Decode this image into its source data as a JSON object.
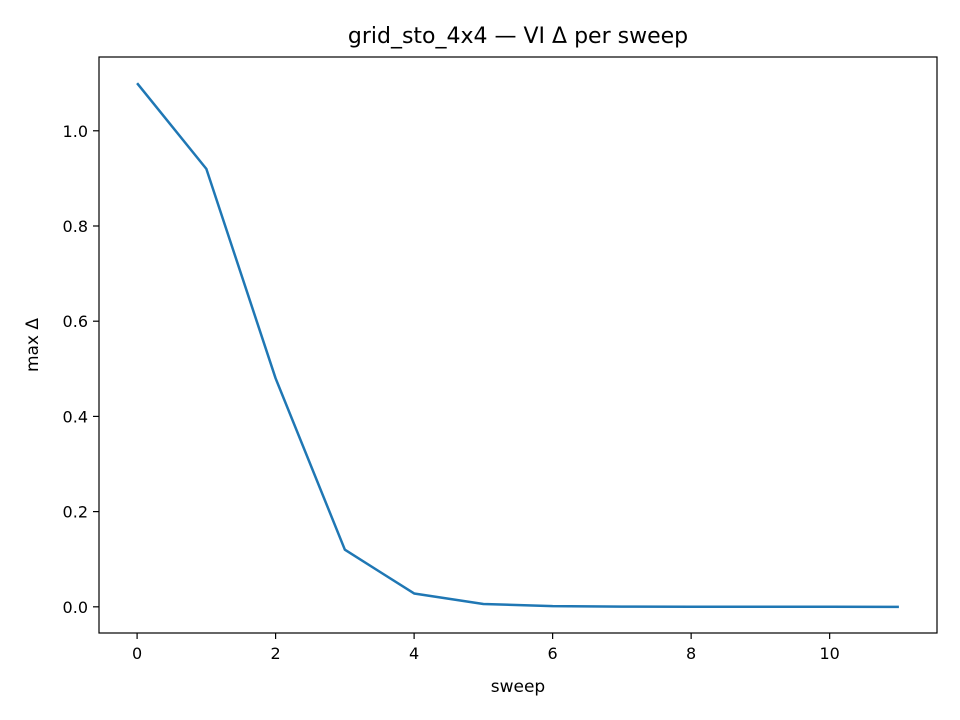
{
  "chart_data": {
    "type": "line",
    "title": "grid_sto_4x4 — VI Δ per sweep",
    "xlabel": "sweep",
    "ylabel": "max Δ",
    "xlim": [
      -0.55,
      11.55
    ],
    "ylim": [
      -0.055,
      1.155
    ],
    "x_ticks": [
      0,
      2,
      4,
      6,
      8,
      10
    ],
    "x_tick_labels": [
      "0",
      "2",
      "4",
      "6",
      "8",
      "10"
    ],
    "y_ticks": [
      0.0,
      0.2,
      0.4,
      0.6,
      0.8,
      1.0
    ],
    "y_tick_labels": [
      "0.0",
      "0.2",
      "0.4",
      "0.6",
      "0.8",
      "1.0"
    ],
    "grid": false,
    "series": [
      {
        "color": "#1f77b4",
        "x": [
          0,
          1,
          2,
          3,
          4,
          5,
          6,
          7,
          8,
          9,
          10,
          11
        ],
        "y": [
          1.1,
          0.92,
          0.48,
          0.12,
          0.028,
          0.006,
          0.0015,
          0.0004,
          0.0001,
          3e-05,
          1e-05,
          0.0
        ]
      }
    ]
  }
}
